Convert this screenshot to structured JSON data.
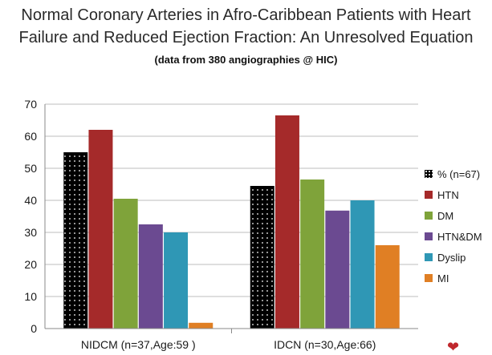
{
  "chart_data": {
    "type": "bar",
    "title": "Normal Coronary Arteries in Afro-Caribbean Patients with Heart Failure and Reduced Ejection Fraction: An Unresolved Equation",
    "title_line1": "Normal Coronary Arteries in Afro-Caribbean Patients with Heart",
    "title_line2": "Failure and Reduced Ejection Fraction: An Unresolved Equation",
    "subtitle": "(data from 380 angiographies @ HIC)",
    "categories": [
      "NIDCM (n=37,Age:59 )",
      "IDCN (n=30,Age:66)"
    ],
    "series": [
      {
        "name": "% (n=67)",
        "color": "#000000",
        "pattern": "dots",
        "values": [
          55,
          44.5
        ]
      },
      {
        "name": "HTN",
        "color": "#a52a2a",
        "values": [
          62,
          66.5
        ]
      },
      {
        "name": "DM",
        "color": "#7fa33a",
        "values": [
          40.5,
          46.5
        ]
      },
      {
        "name": "HTN&DM",
        "color": "#6b4a91",
        "values": [
          32.5,
          36.8
        ]
      },
      {
        "name": "Dyslip",
        "color": "#2f97b5",
        "values": [
          30,
          40
        ]
      },
      {
        "name": "MI",
        "color": "#e07f24",
        "values": [
          1.8,
          26
        ]
      }
    ],
    "ylim": [
      0,
      70
    ],
    "yticks": [
      0,
      10,
      20,
      30,
      40,
      50,
      60,
      70
    ],
    "grid": true,
    "legend_position": "right"
  }
}
